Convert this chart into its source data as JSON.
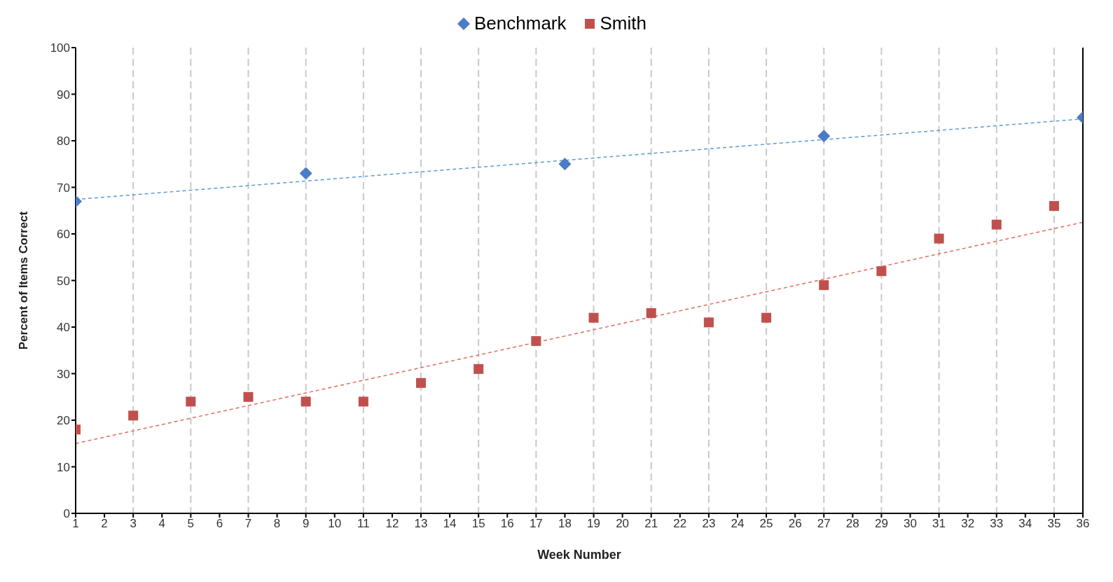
{
  "chart_data": {
    "type": "scatter",
    "xlabel": "Week Number",
    "ylabel": "Percent of Items Correct",
    "xlim": [
      1,
      36
    ],
    "xticks": [
      1,
      2,
      3,
      4,
      5,
      6,
      7,
      8,
      9,
      10,
      11,
      12,
      13,
      14,
      15,
      16,
      17,
      18,
      19,
      20,
      21,
      22,
      23,
      24,
      25,
      26,
      27,
      28,
      29,
      30,
      31,
      32,
      33,
      34,
      35,
      36
    ],
    "ylim": [
      0,
      100
    ],
    "yticks": [
      0,
      10,
      20,
      30,
      40,
      50,
      60,
      70,
      80,
      90,
      100
    ],
    "grid": "x",
    "legend": "top",
    "series": [
      {
        "name": "Benchmark",
        "marker": "diamond",
        "color": "#4a7cc7",
        "x": [
          1,
          9,
          18,
          27,
          36
        ],
        "values": [
          67,
          73,
          75,
          81,
          85
        ]
      },
      {
        "name": "Smith",
        "marker": "square",
        "color": "#c0504d",
        "x": [
          1,
          3,
          5,
          7,
          9,
          11,
          13,
          15,
          17,
          19,
          21,
          23,
          25,
          27,
          29,
          31,
          33,
          35
        ],
        "values": [
          18,
          21,
          24,
          25,
          24,
          24,
          28,
          31,
          37,
          42,
          43,
          41,
          42,
          49,
          52,
          59,
          62,
          66
        ]
      },
      {
        "type": "line",
        "marker": "none",
        "line_style": "dashed",
        "color": "#5b9bd5",
        "x": [
          1,
          36
        ],
        "values": [
          67.4,
          84.7
        ]
      },
      {
        "type": "line",
        "marker": "none",
        "line_style": "dashed",
        "color": "#e06c5e",
        "x": [
          1,
          36
        ],
        "values": [
          15,
          62.5
        ]
      }
    ]
  }
}
